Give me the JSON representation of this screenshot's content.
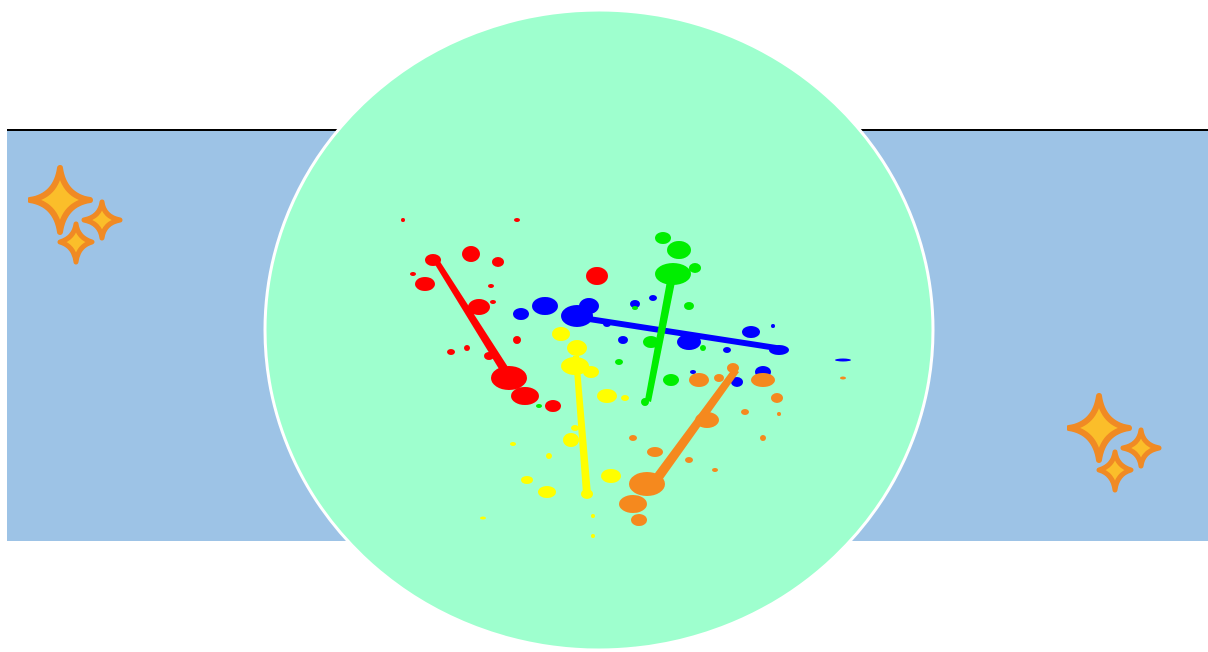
{
  "colors": {
    "background": "#ffffff",
    "band": "#9dc3e6",
    "band_border": "#000000",
    "circle_fill": "#9effce",
    "circle_stroke": "#ffffff",
    "sparkle_outline": "#f08a24",
    "sparkle_fill": "#fbbe2a",
    "splat_red": "#ff0000",
    "splat_blue": "#0000ff",
    "splat_green": "#00ee00",
    "splat_yellow": "#ffff00",
    "splat_orange": "#f5891e"
  },
  "decorations": {
    "circle": "green-circle",
    "splatter": "paint-splatter-icon",
    "sparkles_left": "sparkle-icon",
    "sparkles_right": "sparkle-icon"
  }
}
